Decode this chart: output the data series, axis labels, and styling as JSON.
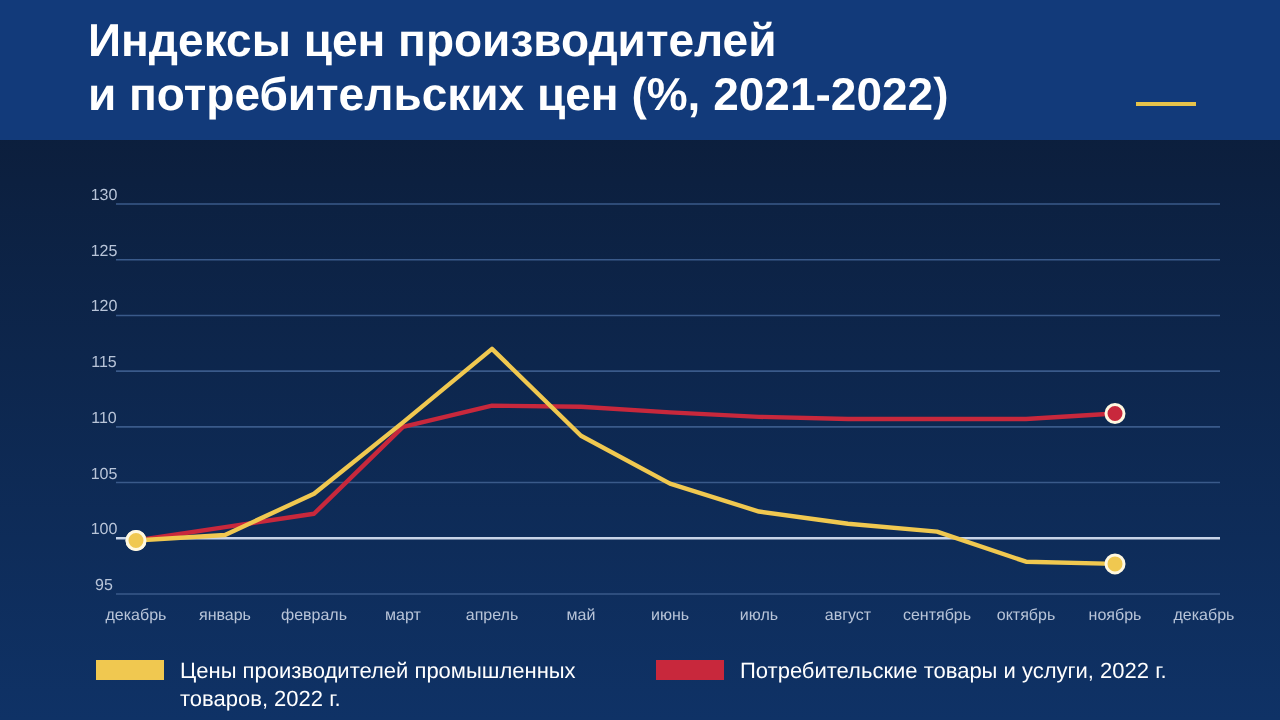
{
  "chart_data": {
    "type": "line",
    "title": "Индексы цен производителей\nи потребительских цен (%, 2021-2022)",
    "categories": [
      "декабрь",
      "январь",
      "февраль",
      "март",
      "апрель",
      "май",
      "июнь",
      "июль",
      "август",
      "сентябрь",
      "октябрь",
      "ноябрь",
      "декабрь"
    ],
    "series": [
      {
        "name": "Цены производителей промышленных товаров, 2022 г.",
        "color": "#f0c850",
        "values": [
          99.8,
          100.3,
          104,
          110.4,
          117,
          109.2,
          104.9,
          102.4,
          101.3,
          100.6,
          97.9,
          97.7,
          null
        ]
      },
      {
        "name": "Потребительские товары и услуги, 2022 г.",
        "color": "#c8283c",
        "values": [
          99.8,
          101,
          102.2,
          110,
          111.9,
          111.8,
          111.3,
          110.9,
          110.7,
          110.7,
          110.7,
          111.2,
          null
        ]
      }
    ],
    "ylim": [
      95,
      130
    ],
    "yticks": [
      95,
      100,
      105,
      110,
      115,
      120,
      125,
      130
    ],
    "grid": "y",
    "ref_lines": [
      {
        "axis": "y",
        "value": 100,
        "color": "#c8d4e8"
      }
    ],
    "legend": "bottom"
  }
}
